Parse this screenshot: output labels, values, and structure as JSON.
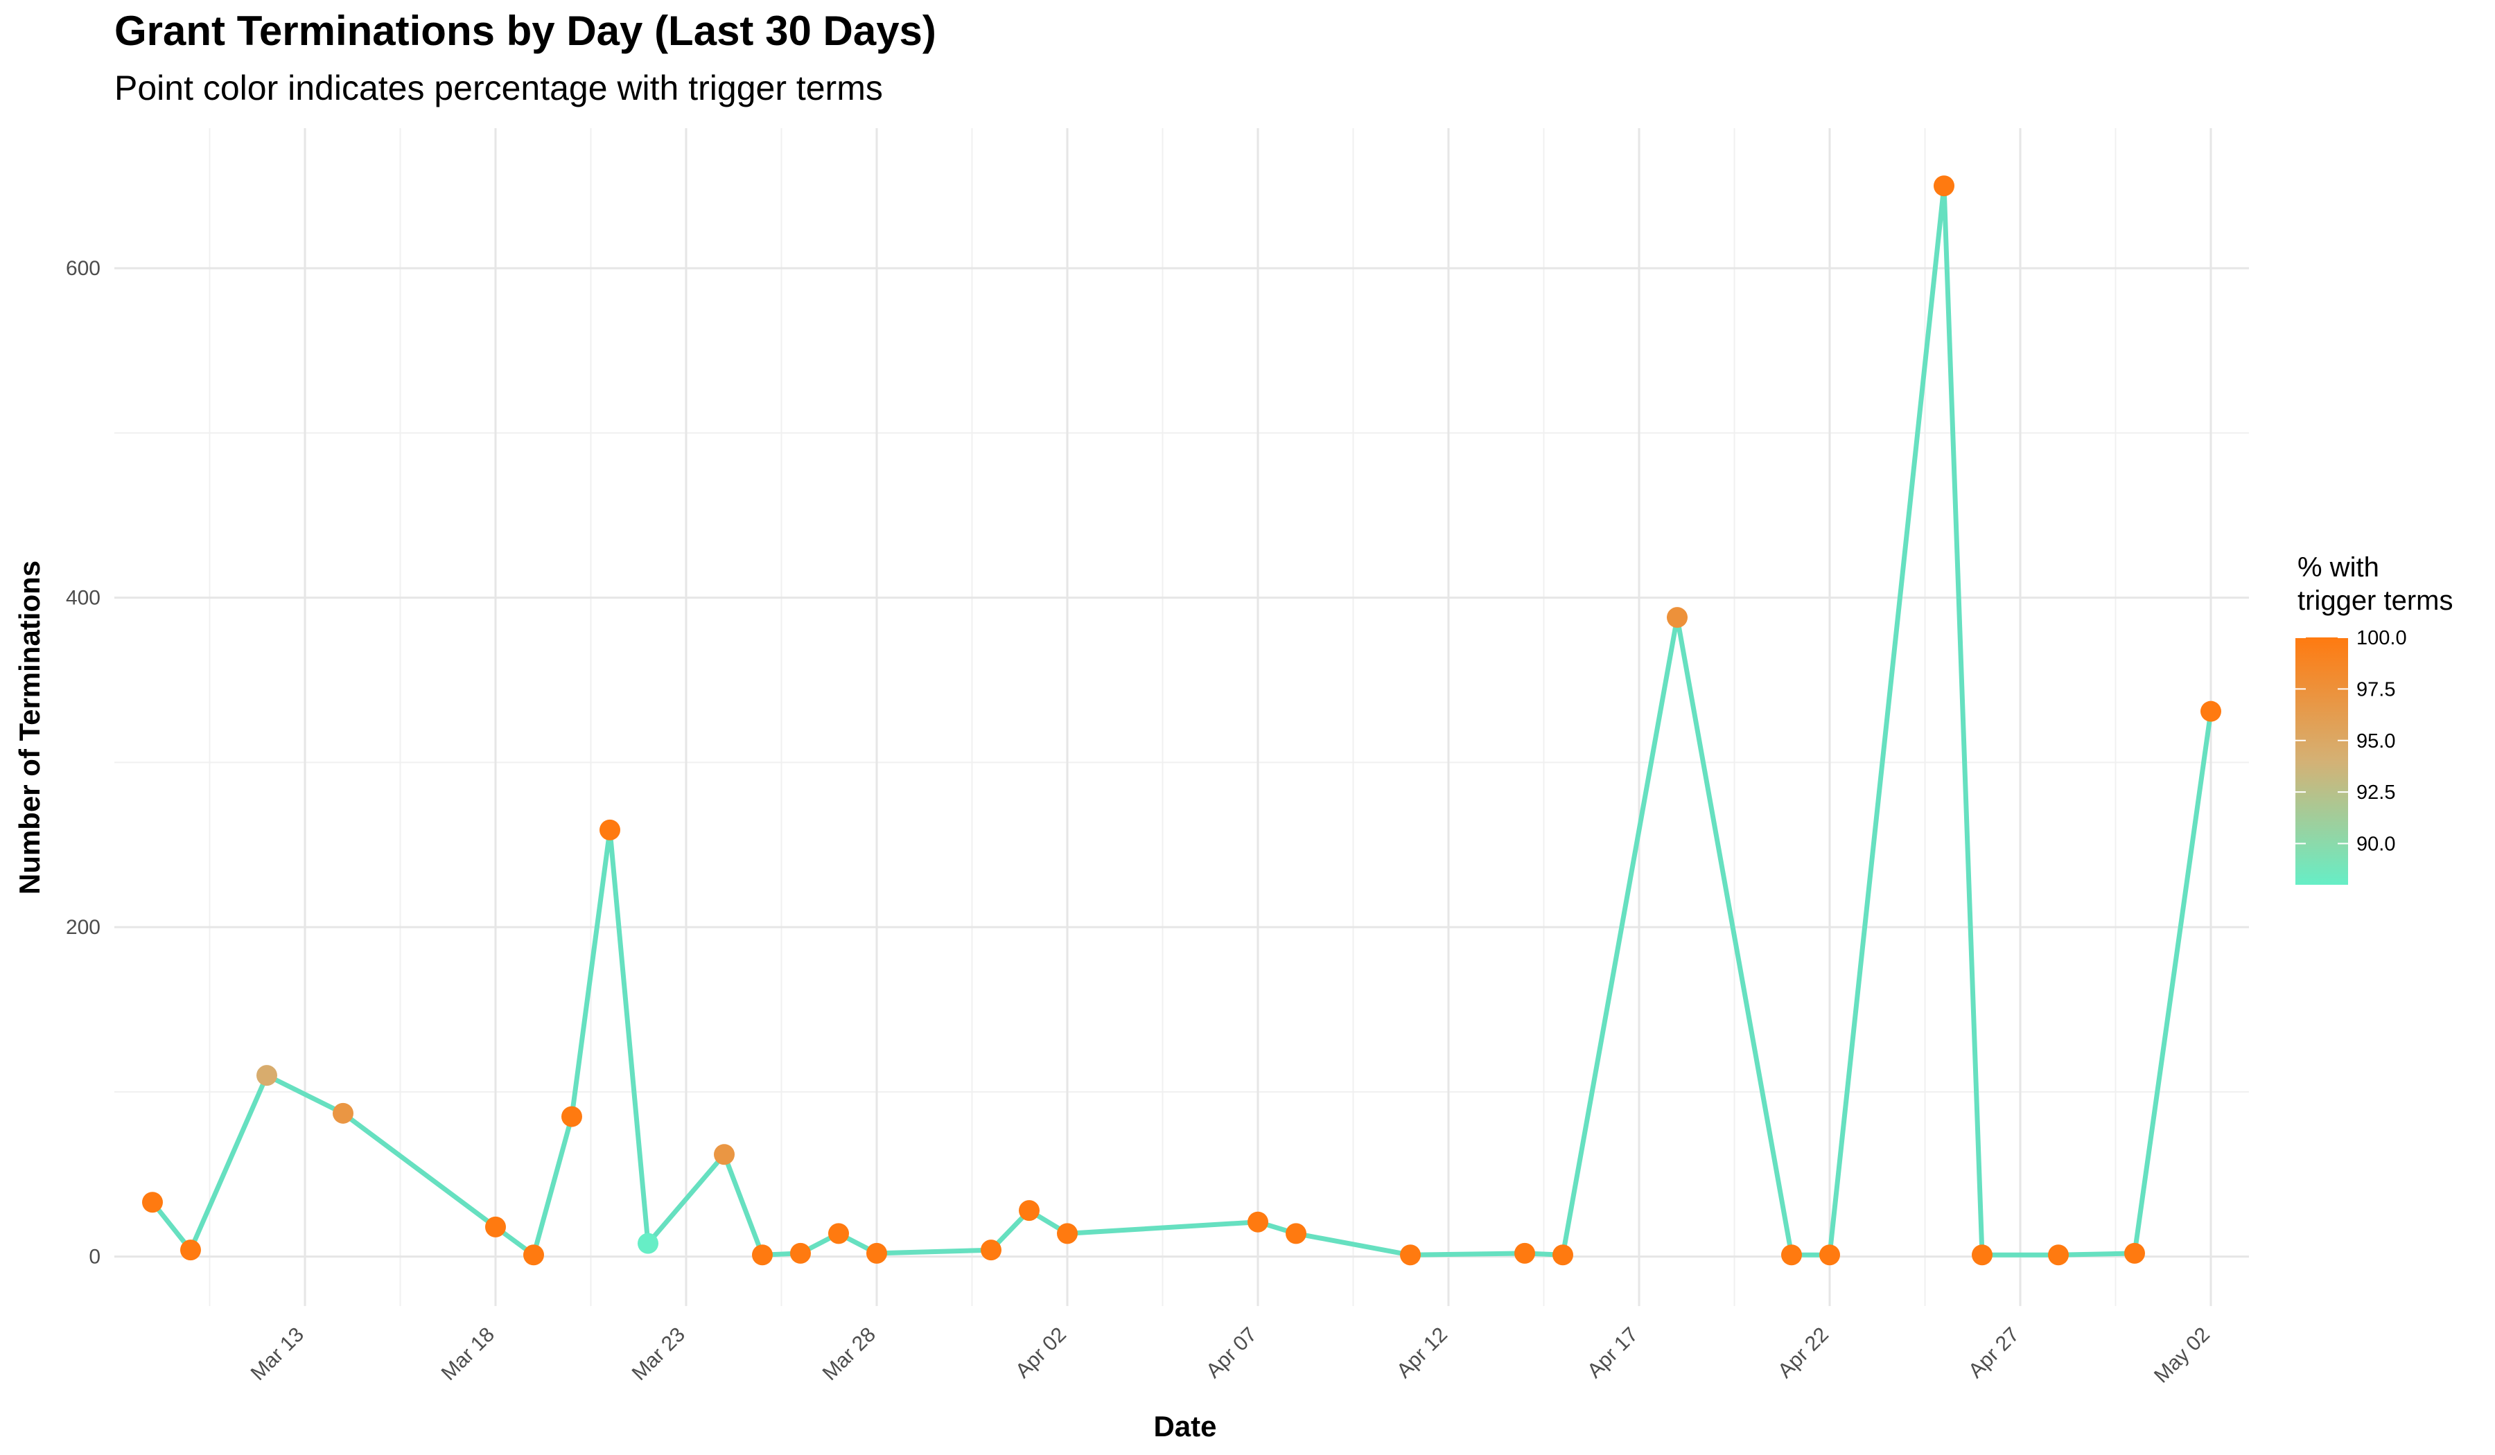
{
  "chart_data": {
    "type": "line",
    "title": "Grant Terminations by Day (Last 30 Days)",
    "subtitle": "Point color indicates percentage with trigger terms",
    "xlabel": "Date",
    "ylabel": "Number of Terminations",
    "x_ticks": [
      "Mar 13",
      "Mar 18",
      "Mar 23",
      "Mar 28",
      "Apr 02",
      "Apr 07",
      "Apr 12",
      "Apr 17",
      "Apr 22",
      "Apr 27",
      "May 02"
    ],
    "y_ticks": [
      "0",
      "200",
      "400",
      "600"
    ],
    "xlim": [
      "2025-03-08",
      "2025-05-03"
    ],
    "ylim": [
      -30,
      685
    ],
    "line_color": "#66e0c0",
    "grid": true,
    "legend": {
      "title": "% with\ntrigger terms",
      "position": "right",
      "type": "colorbar",
      "range": [
        88,
        100
      ],
      "ticks": [
        "90.0",
        "92.5",
        "95.0",
        "97.5",
        "100.0"
      ],
      "color_low": "#66eec6",
      "color_mid": "#d4b175",
      "color_high": "#ff7a10"
    },
    "points": [
      {
        "date": "2025-03-09",
        "y": 33,
        "pct": 100
      },
      {
        "date": "2025-03-10",
        "y": 4,
        "pct": 100
      },
      {
        "date": "2025-03-12",
        "y": 110,
        "pct": 94.5
      },
      {
        "date": "2025-03-14",
        "y": 87,
        "pct": 97
      },
      {
        "date": "2025-03-18",
        "y": 18,
        "pct": 100
      },
      {
        "date": "2025-03-19",
        "y": 1,
        "pct": 100
      },
      {
        "date": "2025-03-20",
        "y": 85,
        "pct": 100
      },
      {
        "date": "2025-03-21",
        "y": 259,
        "pct": 100
      },
      {
        "date": "2025-03-22",
        "y": 8,
        "pct": 88
      },
      {
        "date": "2025-03-24",
        "y": 62,
        "pct": 97
      },
      {
        "date": "2025-03-25",
        "y": 1,
        "pct": 100
      },
      {
        "date": "2025-03-26",
        "y": 2,
        "pct": 100
      },
      {
        "date": "2025-03-27",
        "y": 14,
        "pct": 100
      },
      {
        "date": "2025-03-28",
        "y": 2,
        "pct": 100
      },
      {
        "date": "2025-03-31",
        "y": 4,
        "pct": 100
      },
      {
        "date": "2025-04-01",
        "y": 28,
        "pct": 100
      },
      {
        "date": "2025-04-02",
        "y": 14,
        "pct": 100
      },
      {
        "date": "2025-04-07",
        "y": 21,
        "pct": 100
      },
      {
        "date": "2025-04-08",
        "y": 14,
        "pct": 100
      },
      {
        "date": "2025-04-11",
        "y": 1,
        "pct": 100
      },
      {
        "date": "2025-04-14",
        "y": 2,
        "pct": 100
      },
      {
        "date": "2025-04-15",
        "y": 1,
        "pct": 100
      },
      {
        "date": "2025-04-18",
        "y": 388,
        "pct": 97.5
      },
      {
        "date": "2025-04-21",
        "y": 1,
        "pct": 100
      },
      {
        "date": "2025-04-22",
        "y": 1,
        "pct": 100
      },
      {
        "date": "2025-04-25",
        "y": 650,
        "pct": 100
      },
      {
        "date": "2025-04-26",
        "y": 1,
        "pct": 100
      },
      {
        "date": "2025-04-28",
        "y": 1,
        "pct": 100
      },
      {
        "date": "2025-04-30",
        "y": 2,
        "pct": 100
      },
      {
        "date": "2025-05-02",
        "y": 331,
        "pct": 100
      }
    ]
  }
}
